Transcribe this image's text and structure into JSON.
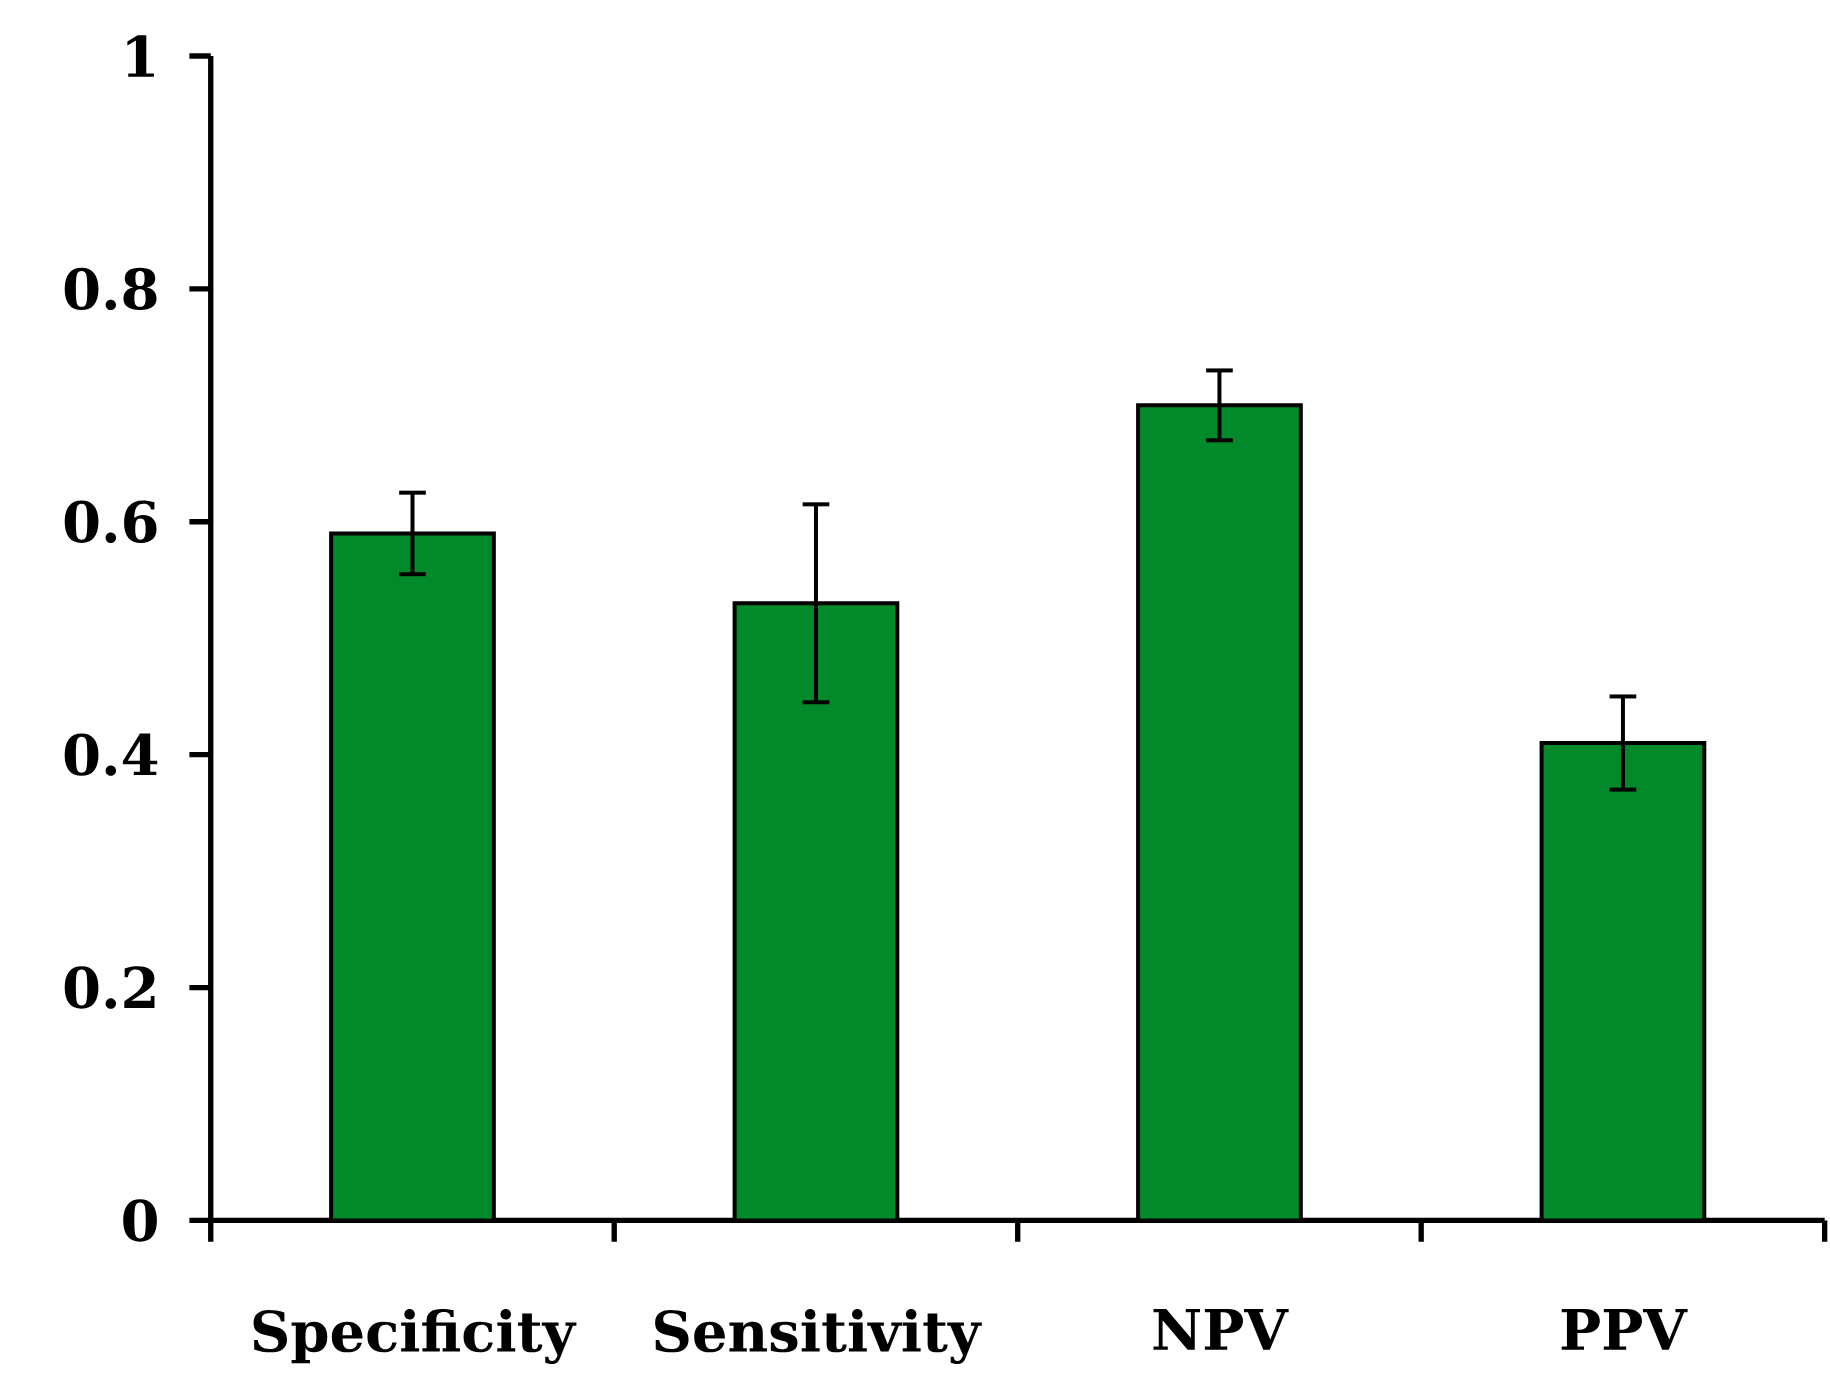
{
  "chart_data": {
    "type": "bar",
    "categories": [
      "Specificity",
      "Sensitivity",
      "NPV",
      "PPV"
    ],
    "values": [
      0.59,
      0.53,
      0.7,
      0.41
    ],
    "errors": [
      0.035,
      0.085,
      0.03,
      0.04
    ],
    "color": "#028a2a",
    "ylim": [
      0,
      1
    ],
    "yticks": [
      0,
      0.2,
      0.4,
      0.6,
      0.8,
      1
    ],
    "grid": false
  }
}
